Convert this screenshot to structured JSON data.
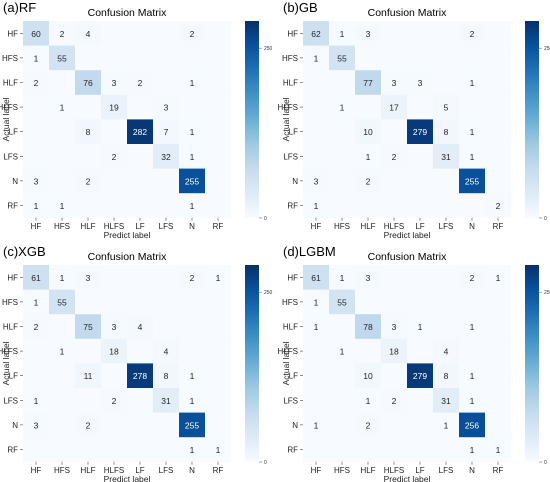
{
  "chart_data": [
    {
      "type": "heatmap",
      "panel_label": "(a)RF",
      "title": "Confusion Matrix",
      "xlabel": "Predict label",
      "ylabel": "Actual label",
      "x_categories": [
        "HF",
        "HFS",
        "HLF",
        "HLFS",
        "LF",
        "LFS",
        "N",
        "RF"
      ],
      "y_categories": [
        "HF",
        "HFS",
        "HLF",
        "HLFS",
        "LF",
        "LFS",
        "N",
        "RF"
      ],
      "values": [
        [
          60,
          2,
          4,
          0,
          0,
          0,
          2,
          0
        ],
        [
          1,
          55,
          0,
          0,
          0,
          0,
          0,
          0
        ],
        [
          2,
          0,
          76,
          3,
          2,
          0,
          1,
          0
        ],
        [
          0,
          1,
          0,
          19,
          0,
          3,
          0,
          0
        ],
        [
          0,
          0,
          8,
          0,
          282,
          7,
          1,
          0
        ],
        [
          0,
          0,
          0,
          2,
          0,
          32,
          1,
          0
        ],
        [
          3,
          0,
          2,
          0,
          0,
          0,
          255,
          0
        ],
        [
          1,
          1,
          0,
          0,
          0,
          0,
          1,
          0
        ]
      ],
      "colorbar": {
        "min": 0,
        "max": 290,
        "ticks": [
          "0",
          "250"
        ]
      }
    },
    {
      "type": "heatmap",
      "panel_label": "(b)GB",
      "title": "Confusion Matrix",
      "xlabel": "Predict label",
      "ylabel": "Actual label",
      "x_categories": [
        "HF",
        "HFS",
        "HLF",
        "HLFS",
        "LF",
        "LFS",
        "N",
        "RF"
      ],
      "y_categories": [
        "HF",
        "HFS",
        "HLF",
        "HLFS",
        "LF",
        "LFS",
        "N",
        "RF"
      ],
      "values": [
        [
          62,
          1,
          3,
          0,
          0,
          0,
          2,
          0
        ],
        [
          1,
          55,
          0,
          0,
          0,
          0,
          0,
          0
        ],
        [
          0,
          0,
          77,
          3,
          3,
          0,
          1,
          0
        ],
        [
          0,
          1,
          0,
          17,
          0,
          5,
          0,
          0
        ],
        [
          0,
          0,
          10,
          0,
          279,
          8,
          1,
          0
        ],
        [
          0,
          0,
          1,
          2,
          0,
          31,
          1,
          0
        ],
        [
          3,
          0,
          2,
          0,
          0,
          0,
          255,
          0
        ],
        [
          1,
          0,
          0,
          0,
          0,
          0,
          0,
          2
        ]
      ],
      "colorbar": {
        "min": 0,
        "max": 290,
        "ticks": [
          "0",
          "250"
        ]
      }
    },
    {
      "type": "heatmap",
      "panel_label": "(c)XGB",
      "title": "Confusion Matrix",
      "xlabel": "Predict label",
      "ylabel": "Actual label",
      "x_categories": [
        "HF",
        "HFS",
        "HLF",
        "HLFS",
        "LF",
        "LFS",
        "N",
        "RF"
      ],
      "y_categories": [
        "HF",
        "HFS",
        "HLF",
        "HLFS",
        "LF",
        "LFS",
        "N",
        "RF"
      ],
      "values": [
        [
          61,
          1,
          3,
          0,
          0,
          0,
          2,
          1
        ],
        [
          1,
          55,
          0,
          0,
          0,
          0,
          0,
          0
        ],
        [
          2,
          0,
          75,
          3,
          4,
          0,
          0,
          0
        ],
        [
          0,
          1,
          0,
          18,
          0,
          4,
          0,
          0
        ],
        [
          0,
          0,
          11,
          0,
          278,
          8,
          1,
          0
        ],
        [
          1,
          0,
          0,
          2,
          0,
          31,
          1,
          0
        ],
        [
          3,
          0,
          2,
          0,
          0,
          0,
          255,
          0
        ],
        [
          0,
          0,
          0,
          0,
          0,
          0,
          1,
          1
        ]
      ],
      "colorbar": {
        "min": 0,
        "max": 290,
        "ticks": [
          "0",
          "250"
        ]
      }
    },
    {
      "type": "heatmap",
      "panel_label": "(d)LGBM",
      "title": "Confusion Matrix",
      "xlabel": "Predict label",
      "ylabel": "Actual label",
      "x_categories": [
        "HF",
        "HFS",
        "HLF",
        "HLFS",
        "LF",
        "LFS",
        "N",
        "RF"
      ],
      "y_categories": [
        "HF",
        "HFS",
        "HLF",
        "HLFS",
        "LF",
        "LFS",
        "N",
        "RF"
      ],
      "values": [
        [
          61,
          1,
          3,
          0,
          0,
          0,
          2,
          1
        ],
        [
          1,
          55,
          0,
          0,
          0,
          0,
          0,
          0
        ],
        [
          1,
          0,
          78,
          3,
          1,
          0,
          1,
          0
        ],
        [
          0,
          1,
          0,
          18,
          0,
          4,
          0,
          0
        ],
        [
          0,
          0,
          10,
          0,
          279,
          8,
          1,
          0
        ],
        [
          0,
          0,
          1,
          2,
          0,
          31,
          1,
          0
        ],
        [
          1,
          0,
          2,
          0,
          0,
          1,
          256,
          0
        ],
        [
          0,
          0,
          0,
          0,
          0,
          0,
          1,
          1
        ]
      ],
      "colorbar": {
        "min": 0,
        "max": 290,
        "ticks": [
          "0",
          "250"
        ]
      }
    }
  ],
  "colors": {
    "low": "#f7fbff",
    "high": "#08306b",
    "text_dark": "#262626",
    "text_light": "#ffffff"
  }
}
